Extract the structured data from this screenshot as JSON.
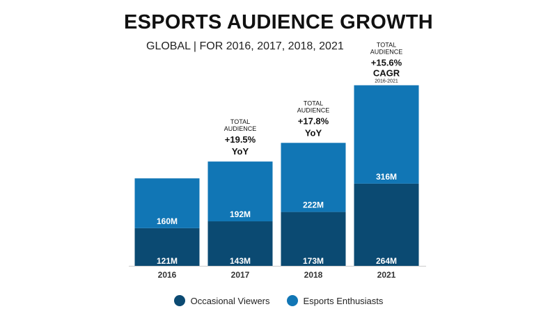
{
  "title": "ESPORTS AUDIENCE GROWTH",
  "subtitle": "GLOBAL | FOR 2016, 2017, 2018, 2021",
  "colors": {
    "occasional": "#0b4a72",
    "enthusiasts": "#1176b5",
    "axis": "#cccccc",
    "bar_label": "#ffffff",
    "annotation": "#111111"
  },
  "chart_data": {
    "type": "bar",
    "stacked": true,
    "categories": [
      "2016",
      "2017",
      "2018",
      "2021"
    ],
    "series": [
      {
        "name": "Occasional Viewers",
        "values": [
          121,
          143,
          173,
          264
        ],
        "labels": [
          "121M",
          "143M",
          "173M",
          "264M"
        ]
      },
      {
        "name": "Esports Enthusiasts",
        "values": [
          160,
          192,
          222,
          316
        ],
        "labels": [
          "160M",
          "192M",
          "222M",
          "316M"
        ]
      }
    ],
    "annotations": [
      null,
      {
        "lines": [
          "TOTAL",
          "AUDIENCE",
          "+19.5%",
          "YoY"
        ]
      },
      {
        "lines": [
          "TOTAL",
          "AUDIENCE",
          "+17.8%",
          "YoY"
        ]
      },
      {
        "lines": [
          "TOTAL",
          "AUDIENCE",
          "+15.6%",
          "CAGR",
          "2016-2021"
        ]
      }
    ],
    "legend_position": "bottom-center",
    "grid": false
  }
}
